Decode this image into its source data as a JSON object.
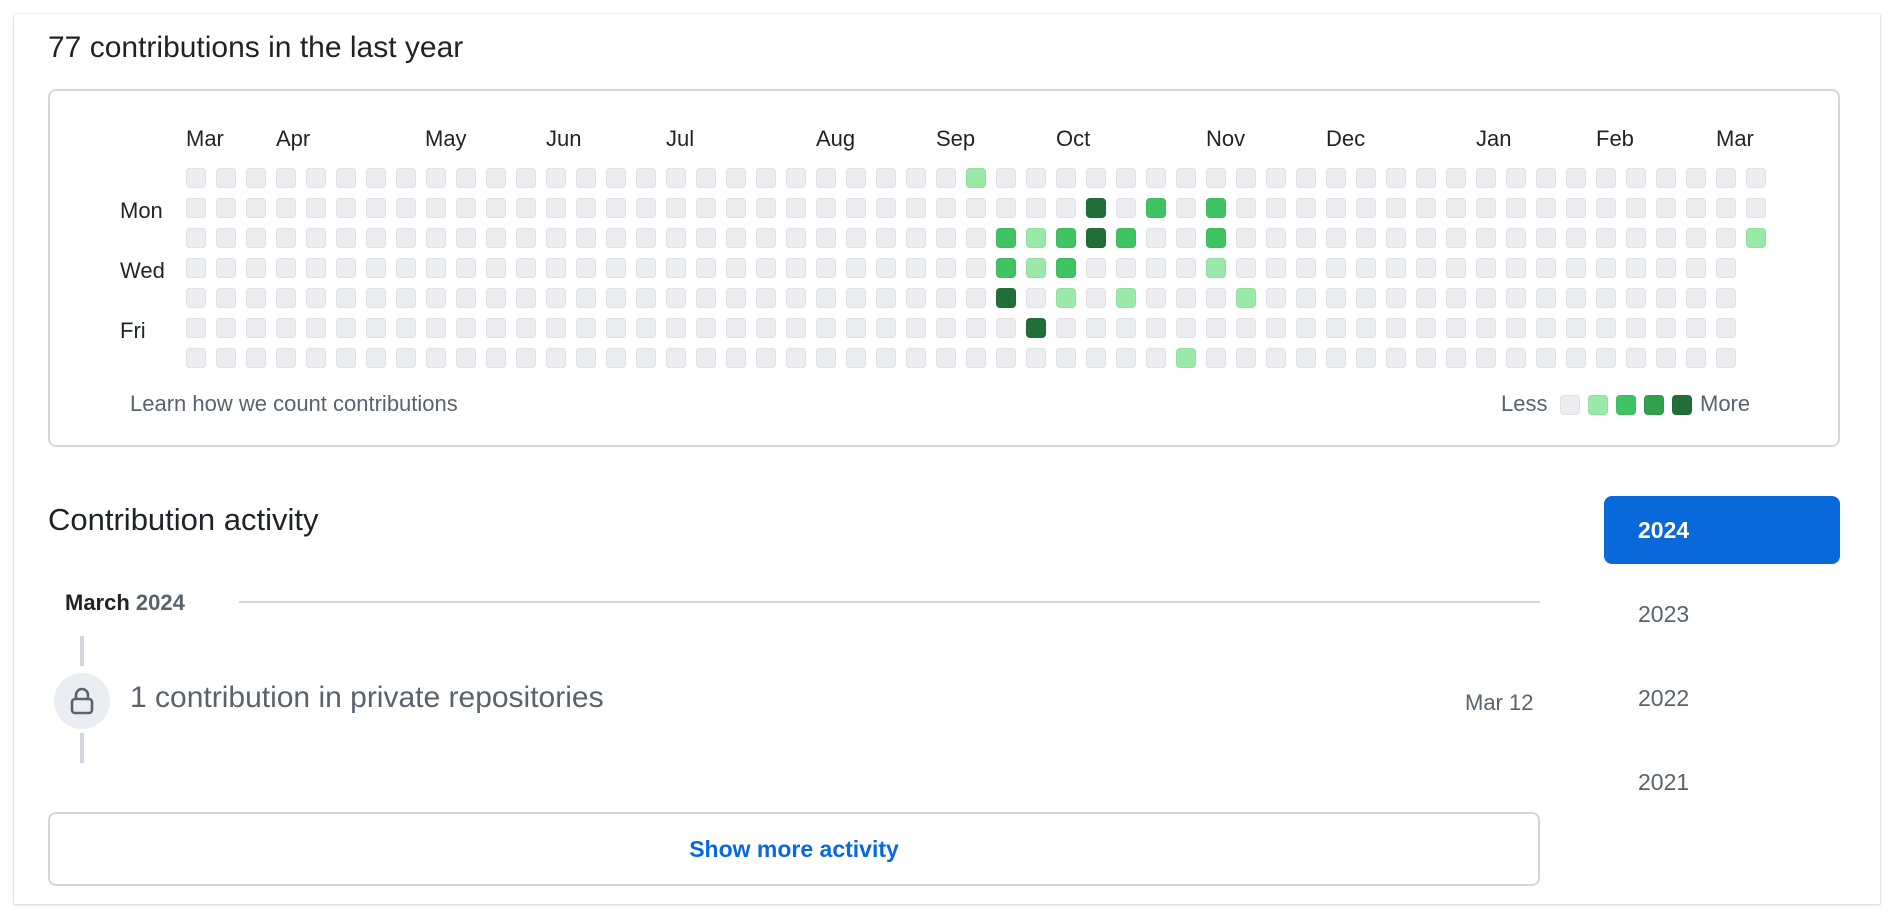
{
  "colors": {
    "level_0": "#ebedf0",
    "level_1": "#9be9a8",
    "level_2": "#40c463",
    "level_3": "#30a14e",
    "level_4": "#216e39",
    "accent": "#0969da"
  },
  "graph": {
    "title": "77 contributions in the last year",
    "months": [
      "Mar",
      "Apr",
      "May",
      "Jun",
      "Jul",
      "Aug",
      "Sep",
      "Oct",
      "Nov",
      "Dec",
      "Jan",
      "Feb",
      "Mar"
    ],
    "days": [
      "Mon",
      "Wed",
      "Fri"
    ],
    "week_count": 53,
    "last_week_days": 3,
    "active_cells": [
      {
        "week": 26,
        "day": 0,
        "level": 1
      },
      {
        "week": 27,
        "day": 2,
        "level": 2
      },
      {
        "week": 27,
        "day": 3,
        "level": 2
      },
      {
        "week": 27,
        "day": 4,
        "level": 4
      },
      {
        "week": 28,
        "day": 2,
        "level": 1
      },
      {
        "week": 28,
        "day": 3,
        "level": 1
      },
      {
        "week": 28,
        "day": 5,
        "level": 4
      },
      {
        "week": 29,
        "day": 2,
        "level": 2
      },
      {
        "week": 29,
        "day": 3,
        "level": 2
      },
      {
        "week": 29,
        "day": 4,
        "level": 1
      },
      {
        "week": 30,
        "day": 1,
        "level": 4
      },
      {
        "week": 30,
        "day": 2,
        "level": 4
      },
      {
        "week": 31,
        "day": 2,
        "level": 2
      },
      {
        "week": 31,
        "day": 4,
        "level": 1
      },
      {
        "week": 32,
        "day": 1,
        "level": 2
      },
      {
        "week": 33,
        "day": 6,
        "level": 1
      },
      {
        "week": 34,
        "day": 1,
        "level": 2
      },
      {
        "week": 34,
        "day": 2,
        "level": 2
      },
      {
        "week": 34,
        "day": 3,
        "level": 1
      },
      {
        "week": 35,
        "day": 4,
        "level": 1
      },
      {
        "week": 52,
        "day": 2,
        "level": 1
      }
    ],
    "learn_link": "Learn how we count contributions",
    "legend_less": "Less",
    "legend_more": "More"
  },
  "activity": {
    "title": "Contribution activity",
    "month_name": "March",
    "month_year": "2024",
    "private_text": "1 contribution in private repositories",
    "private_date": "Mar 12",
    "show_more": "Show more activity"
  },
  "years": [
    {
      "label": "2024",
      "selected": true
    },
    {
      "label": "2023",
      "selected": false
    },
    {
      "label": "2022",
      "selected": false
    },
    {
      "label": "2021",
      "selected": false
    }
  ]
}
